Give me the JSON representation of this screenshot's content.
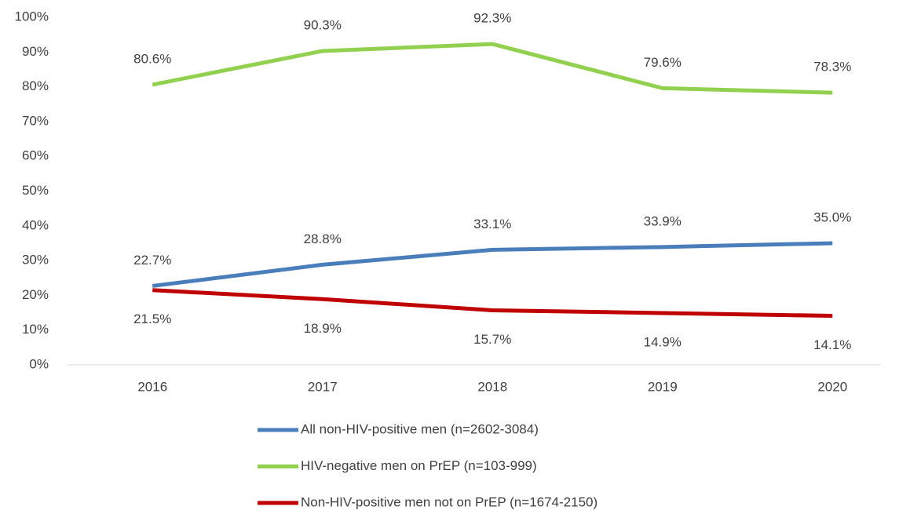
{
  "chart_data": {
    "type": "line",
    "categories": [
      "2016",
      "2017",
      "2018",
      "2019",
      "2020"
    ],
    "series": [
      {
        "name": "All non-HIV-positive men (n=2602-3084)",
        "color": "#4a7ebb",
        "values": [
          22.7,
          28.8,
          33.1,
          33.9,
          35.0
        ],
        "value_labels": [
          "22.7%",
          "28.8%",
          "33.1%",
          "33.9%",
          "35.0%"
        ]
      },
      {
        "name": "HIV-negative men on PrEP (n=103-999)",
        "color": "#92d050",
        "values": [
          80.6,
          90.3,
          92.3,
          79.6,
          78.3
        ],
        "value_labels": [
          "80.6%",
          "90.3%",
          "92.3%",
          "79.6%",
          "78.3%"
        ]
      },
      {
        "name": "Non-HIV-positive men not on PrEP (n=1674-2150)",
        "color": "#c00000",
        "values": [
          21.5,
          18.9,
          15.7,
          14.9,
          14.1
        ],
        "value_labels": [
          "21.5%",
          "18.9%",
          "15.7%",
          "14.9%",
          "14.1%"
        ]
      }
    ],
    "ylim": [
      0,
      100
    ],
    "yticks": [
      {
        "value": 0,
        "label": "0%"
      },
      {
        "value": 10,
        "label": "10%"
      },
      {
        "value": 20,
        "label": "20%"
      },
      {
        "value": 30,
        "label": "30%"
      },
      {
        "value": 40,
        "label": "40%"
      },
      {
        "value": 50,
        "label": "50%"
      },
      {
        "value": 60,
        "label": "60%"
      },
      {
        "value": 70,
        "label": "70%"
      },
      {
        "value": 80,
        "label": "80%"
      },
      {
        "value": 90,
        "label": "90%"
      },
      {
        "value": 100,
        "label": "100%"
      }
    ],
    "grid": false,
    "legend": "bottom"
  }
}
